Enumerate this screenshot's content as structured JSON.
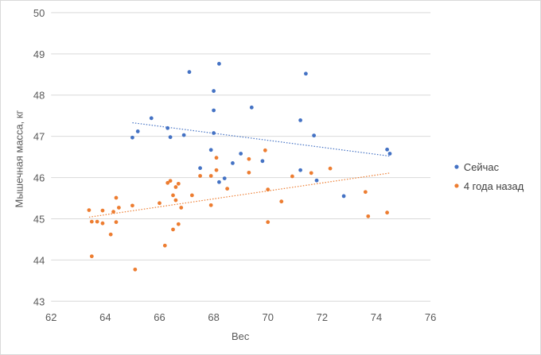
{
  "chart_data": {
    "type": "scatter",
    "title": "",
    "xlabel": "Вес",
    "ylabel": "Мышечная масса, кг",
    "xlim": [
      62,
      76
    ],
    "ylim": [
      43,
      50
    ],
    "xticks": [
      "62",
      "64",
      "66",
      "68",
      "70",
      "72",
      "74",
      "76"
    ],
    "yticks": [
      "43",
      "44",
      "45",
      "46",
      "47",
      "48",
      "49",
      "50"
    ],
    "grid": "horizontal",
    "legend_position": "right",
    "series": [
      {
        "name": "Сейчас",
        "color": "#4472c4",
        "trendline": {
          "x": [
            65.0,
            74.5
          ],
          "y": [
            47.33,
            46.52
          ]
        },
        "points": [
          [
            65.0,
            46.97
          ],
          [
            65.2,
            47.12
          ],
          [
            65.7,
            47.44
          ],
          [
            66.3,
            47.2
          ],
          [
            66.4,
            46.98
          ],
          [
            66.9,
            47.03
          ],
          [
            67.1,
            48.56
          ],
          [
            67.5,
            46.23
          ],
          [
            67.9,
            46.67
          ],
          [
            68.0,
            48.1
          ],
          [
            68.0,
            47.63
          ],
          [
            68.0,
            47.08
          ],
          [
            68.2,
            48.76
          ],
          [
            68.2,
            45.89
          ],
          [
            68.4,
            45.98
          ],
          [
            68.7,
            46.35
          ],
          [
            69.0,
            46.58
          ],
          [
            69.4,
            47.7
          ],
          [
            69.8,
            46.4
          ],
          [
            71.2,
            47.39
          ],
          [
            71.2,
            46.18
          ],
          [
            71.4,
            48.52
          ],
          [
            71.7,
            47.02
          ],
          [
            71.8,
            45.93
          ],
          [
            72.8,
            45.55
          ],
          [
            74.4,
            46.68
          ],
          [
            74.5,
            46.58
          ]
        ]
      },
      {
        "name": "4 года назад",
        "color": "#ed7d31",
        "trendline": {
          "x": [
            63.4,
            74.5
          ],
          "y": [
            45.04,
            46.11
          ]
        },
        "points": [
          [
            63.4,
            45.21
          ],
          [
            63.5,
            44.93
          ],
          [
            63.5,
            44.09
          ],
          [
            63.7,
            44.93
          ],
          [
            63.9,
            45.2
          ],
          [
            63.9,
            44.89
          ],
          [
            64.2,
            44.62
          ],
          [
            64.3,
            45.17
          ],
          [
            64.4,
            45.51
          ],
          [
            64.4,
            44.92
          ],
          [
            64.5,
            45.27
          ],
          [
            65.0,
            45.32
          ],
          [
            65.1,
            43.77
          ],
          [
            66.0,
            45.38
          ],
          [
            66.2,
            44.35
          ],
          [
            66.3,
            45.87
          ],
          [
            66.4,
            45.92
          ],
          [
            66.5,
            45.57
          ],
          [
            66.5,
            44.74
          ],
          [
            66.6,
            45.77
          ],
          [
            66.6,
            45.45
          ],
          [
            66.7,
            45.85
          ],
          [
            66.7,
            44.87
          ],
          [
            66.8,
            45.27
          ],
          [
            67.2,
            45.57
          ],
          [
            67.5,
            46.04
          ],
          [
            67.9,
            45.33
          ],
          [
            67.9,
            46.04
          ],
          [
            68.1,
            46.48
          ],
          [
            68.1,
            46.18
          ],
          [
            68.5,
            45.73
          ],
          [
            69.3,
            46.45
          ],
          [
            69.3,
            46.12
          ],
          [
            69.9,
            46.66
          ],
          [
            70.0,
            45.71
          ],
          [
            70.0,
            44.92
          ],
          [
            70.5,
            45.42
          ],
          [
            70.9,
            46.03
          ],
          [
            71.6,
            46.11
          ],
          [
            72.3,
            46.22
          ],
          [
            73.6,
            45.65
          ],
          [
            73.7,
            45.06
          ],
          [
            74.4,
            45.15
          ]
        ]
      }
    ]
  }
}
